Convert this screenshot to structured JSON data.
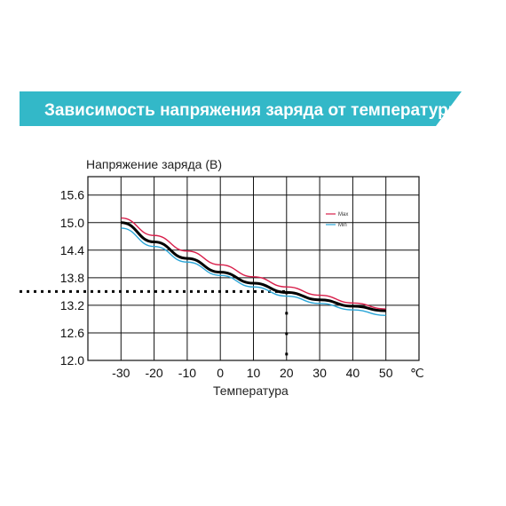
{
  "banner": {
    "title": "Зависимость напряжения заряда от температуры",
    "color": "#33b8c8"
  },
  "chart_data": {
    "type": "line",
    "ylabel": "Напряжение заряда (В)",
    "xlabel": "Температура",
    "x_unit": "℃",
    "x_ticks": [
      "-30",
      "-20",
      "-10",
      "0",
      "10",
      "20",
      "30",
      "40",
      "50"
    ],
    "y_ticks": [
      "12.0",
      "12.6",
      "13.2",
      "13.8",
      "14.4",
      "15.0",
      "15.6"
    ],
    "xlim": [
      -40,
      60
    ],
    "ylim": [
      12.0,
      16.0
    ],
    "grid": true,
    "legend_position": "top-right",
    "series": [
      {
        "name": "Max",
        "color": "#d81e4a",
        "x": [
          -30,
          -20,
          -10,
          0,
          10,
          20,
          30,
          40,
          50
        ],
        "y": [
          15.1,
          14.72,
          14.38,
          14.08,
          13.82,
          13.6,
          13.42,
          13.25,
          13.12
        ]
      },
      {
        "name": "",
        "color": "#000000",
        "x": [
          -30,
          -20,
          -10,
          0,
          10,
          20,
          30,
          40,
          50
        ],
        "y": [
          15.0,
          14.58,
          14.22,
          13.92,
          13.68,
          13.48,
          13.32,
          13.18,
          13.08
        ]
      },
      {
        "name": "Min",
        "color": "#2aa6d8",
        "x": [
          -30,
          -20,
          -10,
          0,
          10,
          20,
          30,
          40,
          50
        ],
        "y": [
          14.88,
          14.48,
          14.14,
          13.85,
          13.6,
          13.4,
          13.24,
          13.1,
          12.98
        ]
      }
    ],
    "reference": {
      "x": 20,
      "y": 13.5
    }
  }
}
